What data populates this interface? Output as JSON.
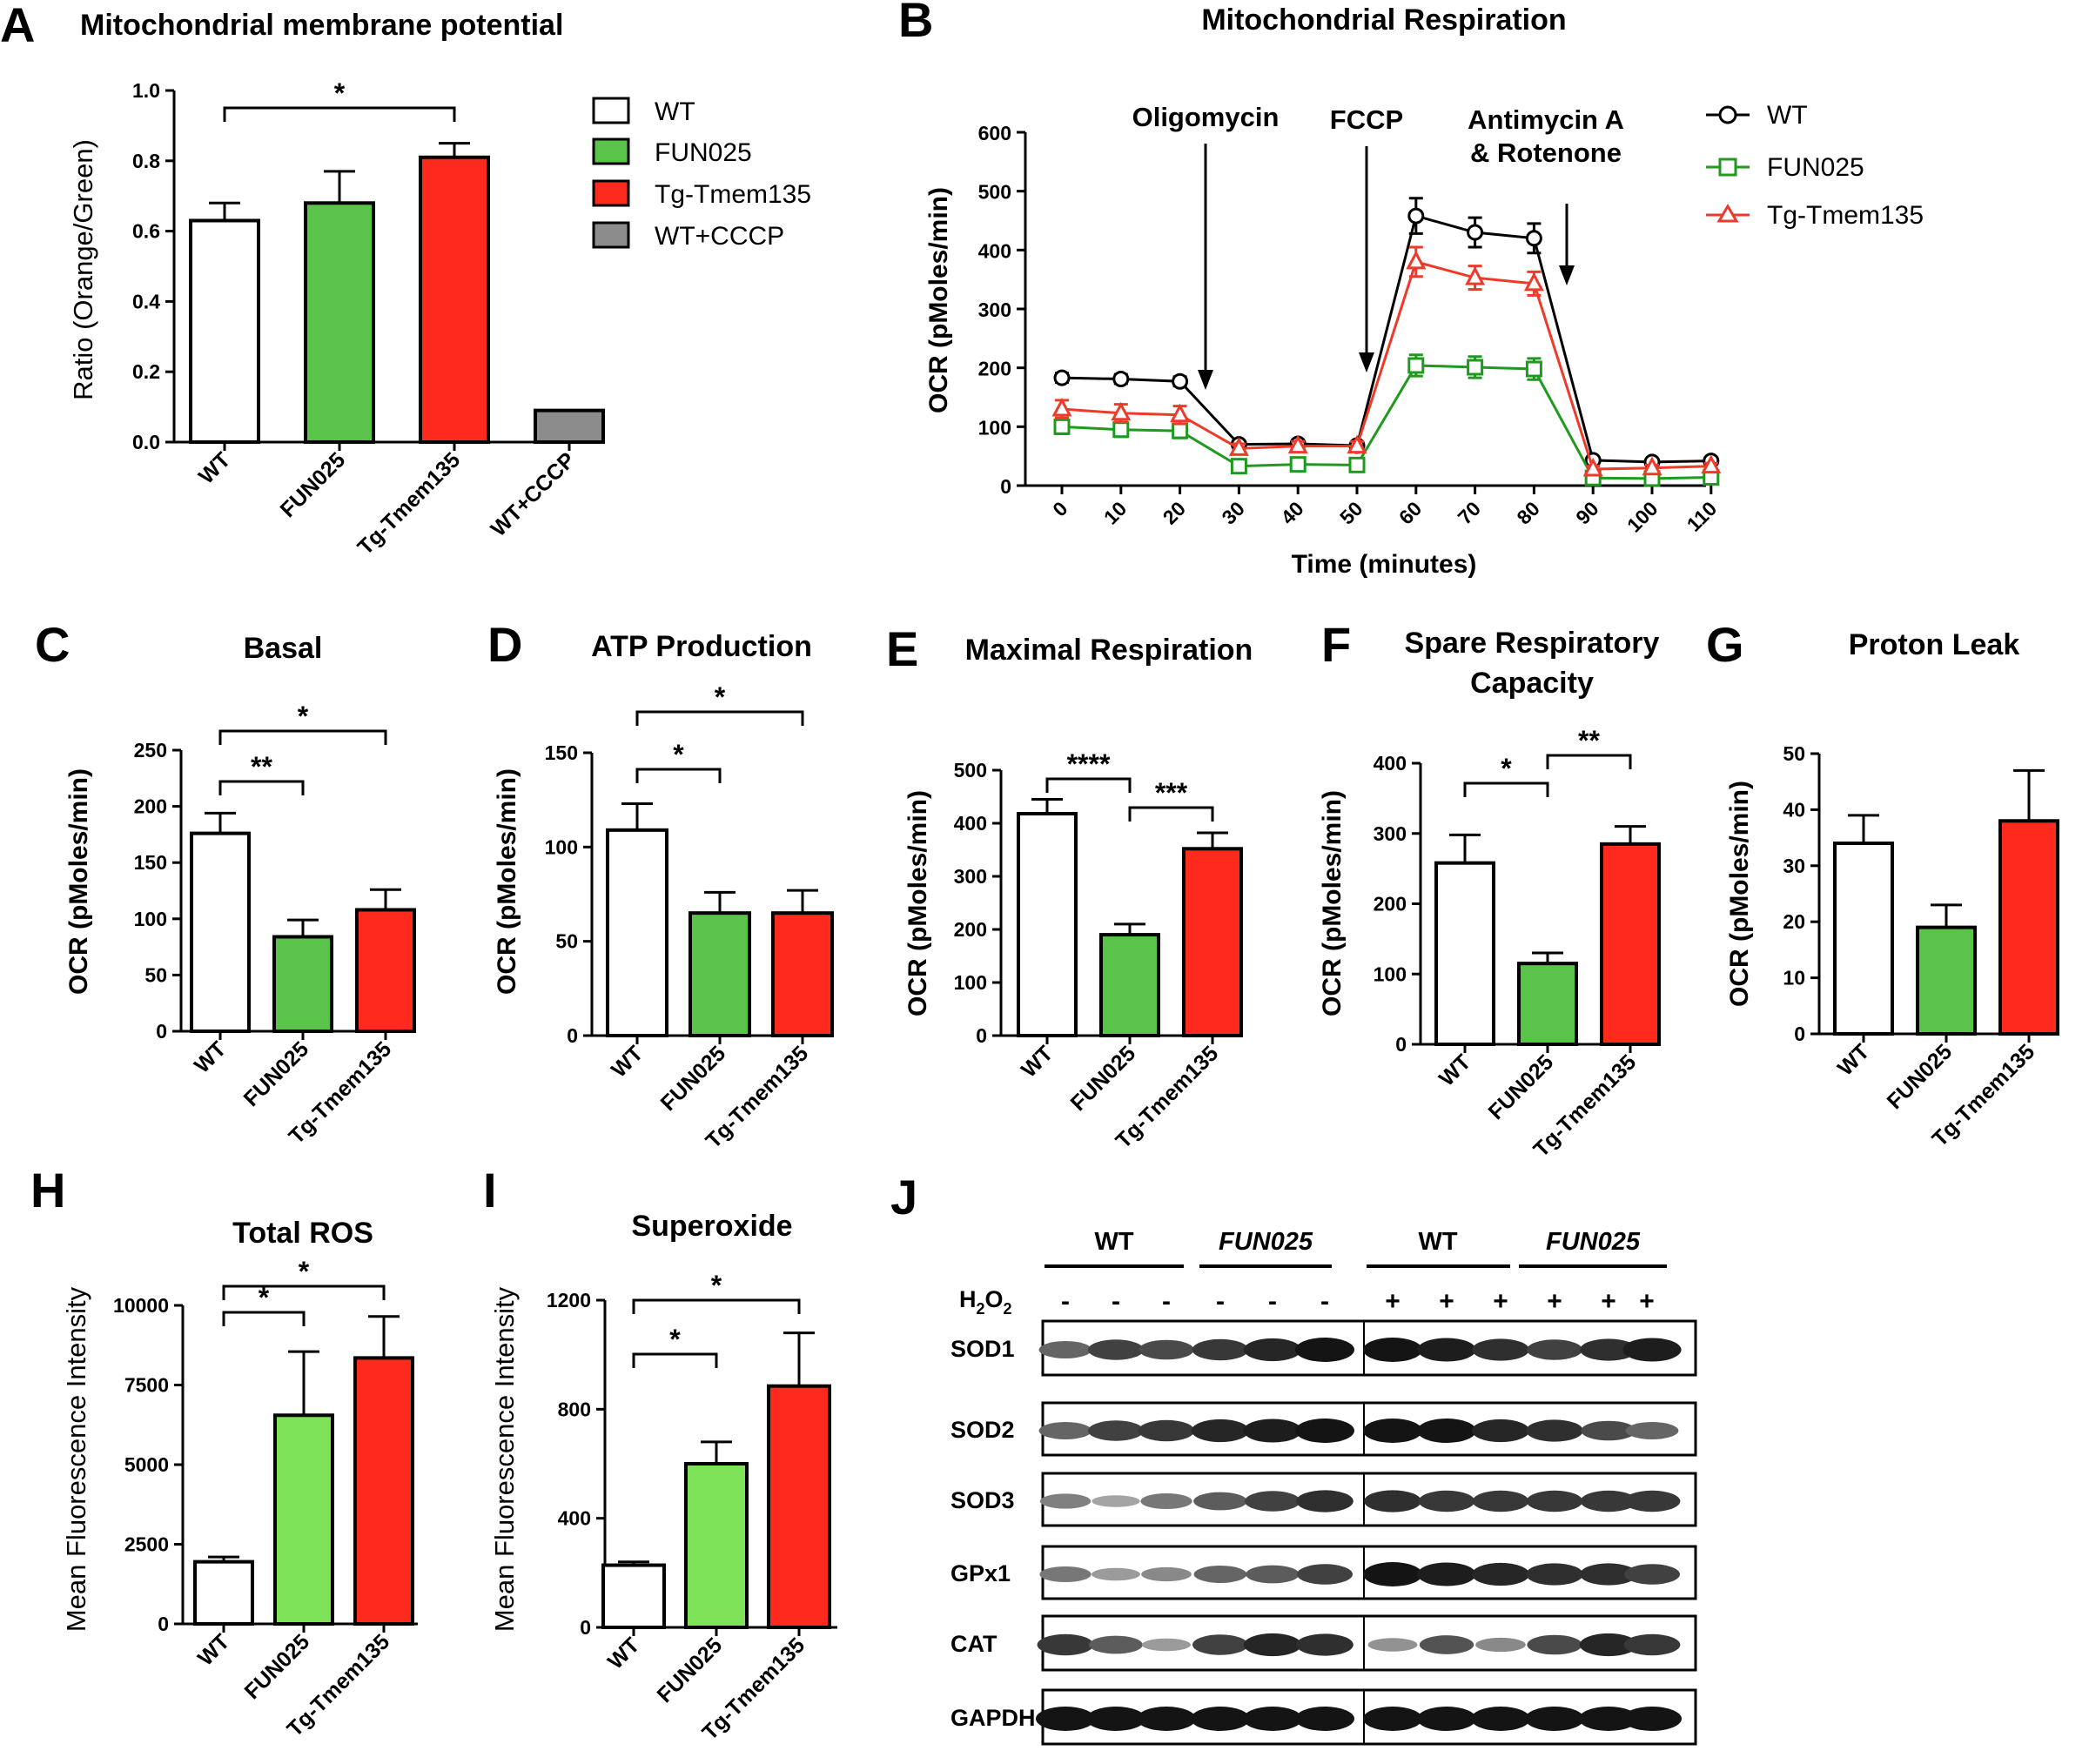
{
  "colors": {
    "wt": "#ffffff",
    "fun025": "#5ac34a",
    "fun025_light": "#7fe35a",
    "tg": "#ff2a1e",
    "cccp": "#8c8c8c",
    "line_wt": "#000000",
    "line_fun": "#1f9a1f",
    "line_tg": "#ee3a2a"
  },
  "panels": {
    "A": {
      "letter": "A",
      "title": "Mitochondrial membrane potential",
      "ylabel": "Ratio   (Orange/Green)"
    },
    "B": {
      "letter": "B",
      "title": "Mitochondrial Respiration",
      "ylabel": "OCR (pMoles/min)",
      "xlabel": "Time (minutes)"
    },
    "C": {
      "letter": "C",
      "title": "Basal",
      "ylabel": "OCR (pMoles/min)"
    },
    "D": {
      "letter": "D",
      "title": "ATP Production",
      "ylabel": "OCR (pMoles/min)"
    },
    "E": {
      "letter": "E",
      "title": "Maximal Respiration",
      "ylabel": "OCR (pMoles/min)"
    },
    "F": {
      "letter": "F",
      "title_line1": "Spare Respiratory",
      "title_line2": "Capacity",
      "ylabel": "OCR (pMoles/min)"
    },
    "G": {
      "letter": "G",
      "title": "Proton Leak",
      "ylabel": "OCR (pMoles/min)"
    },
    "H": {
      "letter": "H",
      "title": "Total ROS",
      "ylabel": "Mean Fluorescence Intensity"
    },
    "I": {
      "letter": "I",
      "title": "Superoxide",
      "ylabel": "Mean Fluorescence Intensity"
    },
    "J": {
      "letter": "J"
    }
  },
  "legendA": [
    "WT",
    "FUN025",
    "Tg-Tmem135",
    "WT+CCCP"
  ],
  "legendB": [
    "WT",
    "FUN025",
    "Tg-Tmem135"
  ],
  "annotationsB": {
    "oligo": "Oligomycin",
    "fccp": "FCCP",
    "anti1": "Antimycin A",
    "anti2": "& Rotenone"
  },
  "blot": {
    "groups": [
      "WT",
      "FUN025",
      "WT",
      "FUN025"
    ],
    "h2o2_label": "H",
    "h2o2_sub1": "2",
    "h2o2_mid": "O",
    "h2o2_sub2": "2",
    "signs": [
      "-",
      "-",
      "-",
      "-",
      "-",
      "-",
      "+",
      "+",
      "+",
      "+",
      "+",
      "+"
    ],
    "proteins": [
      "SOD1",
      "SOD2",
      "SOD3",
      "GPx1",
      "CAT",
      "GAPDH"
    ],
    "intensity": [
      [
        0.55,
        0.75,
        0.7,
        0.8,
        0.9,
        1.0,
        1.0,
        0.95,
        0.85,
        0.75,
        0.85,
        0.95
      ],
      [
        0.55,
        0.75,
        0.8,
        0.9,
        0.95,
        1.0,
        1.0,
        1.0,
        0.9,
        0.85,
        0.7,
        0.55
      ],
      [
        0.4,
        0.2,
        0.45,
        0.6,
        0.75,
        0.85,
        0.85,
        0.8,
        0.8,
        0.8,
        0.8,
        0.8
      ],
      [
        0.45,
        0.25,
        0.35,
        0.55,
        0.6,
        0.75,
        1.0,
        0.95,
        0.9,
        0.85,
        0.85,
        0.75
      ],
      [
        0.8,
        0.6,
        0.25,
        0.75,
        0.9,
        0.85,
        0.3,
        0.65,
        0.35,
        0.7,
        0.9,
        0.8
      ],
      [
        1.0,
        1.0,
        1.0,
        1.0,
        1.0,
        1.0,
        1.0,
        1.0,
        1.0,
        1.0,
        1.0,
        1.0
      ]
    ]
  },
  "chart_data": [
    {
      "panel": "A",
      "type": "bar",
      "title": "Mitochondrial membrane potential",
      "ylabel": "Ratio   (Orange/Green)",
      "categories": [
        "WT",
        "FUN025",
        "Tg-Tmem135",
        "WT+CCCP"
      ],
      "values": [
        0.63,
        0.68,
        0.81,
        0.09
      ],
      "errors": [
        0.05,
        0.09,
        0.04,
        0.0
      ],
      "ylim": [
        0,
        1.0
      ],
      "yticks": [
        "0.0",
        "0.2",
        "0.4",
        "0.6",
        "0.8",
        "1.0"
      ],
      "significance": [
        {
          "from": 0,
          "to": 2,
          "label": "*"
        }
      ]
    },
    {
      "panel": "B",
      "type": "line",
      "title": "Mitochondrial Respiration",
      "xlabel": "Time (minutes)",
      "ylabel": "OCR (pMoles/min)",
      "x": [
        0,
        10,
        20,
        30,
        40,
        50,
        60,
        70,
        80,
        90,
        100,
        110
      ],
      "xticks": [
        "0",
        "10",
        "20",
        "30",
        "40",
        "50",
        "60",
        "70",
        "80",
        "90",
        "100",
        "110"
      ],
      "ylim": [
        0,
        600
      ],
      "yticks": [
        "0",
        "100",
        "200",
        "300",
        "400",
        "500",
        "600"
      ],
      "series": [
        {
          "name": "WT",
          "values": [
            183,
            181,
            177,
            70,
            71,
            68,
            458,
            430,
            420,
            43,
            40,
            42
          ],
          "errors": [
            8,
            8,
            8,
            5,
            5,
            5,
            30,
            25,
            25,
            5,
            5,
            5
          ]
        },
        {
          "name": "FUN025",
          "values": [
            100,
            95,
            93,
            33,
            36,
            35,
            204,
            201,
            198,
            13,
            12,
            14
          ],
          "errors": [
            12,
            12,
            12,
            8,
            8,
            8,
            18,
            18,
            18,
            5,
            5,
            5
          ]
        },
        {
          "name": "Tg-Tmem135",
          "values": [
            130,
            123,
            120,
            63,
            67,
            67,
            380,
            353,
            343,
            28,
            30,
            33
          ],
          "errors": [
            15,
            15,
            15,
            8,
            8,
            8,
            25,
            20,
            20,
            5,
            5,
            5
          ]
        }
      ],
      "annotations": [
        "Oligomycin",
        "FCCP",
        "Antimycin A & Rotenone"
      ]
    },
    {
      "panel": "C",
      "type": "bar",
      "title": "Basal",
      "ylabel": "OCR (pMoles/min)",
      "categories": [
        "WT",
        "FUN025",
        "Tg-Tmem135"
      ],
      "values": [
        176,
        84,
        108
      ],
      "errors": [
        18,
        15,
        18
      ],
      "ylim": [
        0,
        250
      ],
      "yticks": [
        "0",
        "50",
        "100",
        "150",
        "200",
        "250"
      ],
      "significance": [
        {
          "from": 0,
          "to": 1,
          "label": "**"
        },
        {
          "from": 0,
          "to": 2,
          "label": "*"
        }
      ]
    },
    {
      "panel": "D",
      "type": "bar",
      "title": "ATP Production",
      "ylabel": "OCR (pMoles/min)",
      "categories": [
        "WT",
        "FUN025",
        "Tg-Tmem135"
      ],
      "values": [
        109,
        65,
        65
      ],
      "errors": [
        14,
        11,
        12
      ],
      "ylim": [
        0,
        150
      ],
      "yticks": [
        "0",
        "50",
        "100",
        "150"
      ],
      "significance": [
        {
          "from": 0,
          "to": 1,
          "label": "*"
        },
        {
          "from": 0,
          "to": 2,
          "label": "*"
        }
      ]
    },
    {
      "panel": "E",
      "type": "bar",
      "title": "Maximal Respiration",
      "ylabel": "OCR (pMoles/min)",
      "categories": [
        "WT",
        "FUN025",
        "Tg-Tmem135"
      ],
      "values": [
        418,
        190,
        352
      ],
      "errors": [
        27,
        20,
        30
      ],
      "ylim": [
        0,
        500
      ],
      "yticks": [
        "0",
        "100",
        "200",
        "300",
        "400",
        "500"
      ],
      "significance": [
        {
          "from": 0,
          "to": 1,
          "label": "****"
        },
        {
          "from": 1,
          "to": 2,
          "label": "***"
        }
      ]
    },
    {
      "panel": "F",
      "type": "bar",
      "title": "Spare Respiratory Capacity",
      "ylabel": "OCR (pMoles/min)",
      "categories": [
        "WT",
        "FUN025",
        "Tg-Tmem135"
      ],
      "values": [
        258,
        115,
        285
      ],
      "errors": [
        40,
        15,
        25
      ],
      "ylim": [
        0,
        400
      ],
      "yticks": [
        "0",
        "100",
        "200",
        "300",
        "400"
      ],
      "significance": [
        {
          "from": 0,
          "to": 1,
          "label": "*"
        },
        {
          "from": 1,
          "to": 2,
          "label": "**"
        }
      ]
    },
    {
      "panel": "G",
      "type": "bar",
      "title": "Proton Leak",
      "ylabel": "OCR (pMoles/min)",
      "categories": [
        "WT",
        "FUN025",
        "Tg-Tmem135"
      ],
      "values": [
        34,
        19,
        38
      ],
      "errors": [
        5,
        4,
        9
      ],
      "ylim": [
        0,
        50
      ],
      "yticks": [
        "0",
        "10",
        "20",
        "30",
        "40",
        "50"
      ],
      "significance": []
    },
    {
      "panel": "H",
      "type": "bar",
      "title": "Total ROS",
      "ylabel": "Mean Fluorescence Intensity",
      "categories": [
        "WT",
        "FUN025",
        "Tg-Tmem135"
      ],
      "values": [
        1950,
        6550,
        8350
      ],
      "errors": [
        150,
        2000,
        1300
      ],
      "ylim": [
        0,
        10000
      ],
      "yticks": [
        "0",
        "2500",
        "5000",
        "7500",
        "10000"
      ],
      "significance": [
        {
          "from": 0,
          "to": 1,
          "label": "*"
        },
        {
          "from": 0,
          "to": 2,
          "label": "*"
        }
      ]
    },
    {
      "panel": "I",
      "type": "bar",
      "title": "Superoxide",
      "ylabel": "Mean Fluorescence Intensity",
      "categories": [
        "WT",
        "FUN025",
        "Tg-Tmem135"
      ],
      "values": [
        228,
        600,
        885
      ],
      "errors": [
        12,
        80,
        195
      ],
      "ylim": [
        0,
        1200
      ],
      "yticks": [
        "0",
        "400",
        "800",
        "1200"
      ],
      "significance": [
        {
          "from": 0,
          "to": 1,
          "label": "*"
        },
        {
          "from": 0,
          "to": 2,
          "label": "*"
        }
      ]
    }
  ]
}
